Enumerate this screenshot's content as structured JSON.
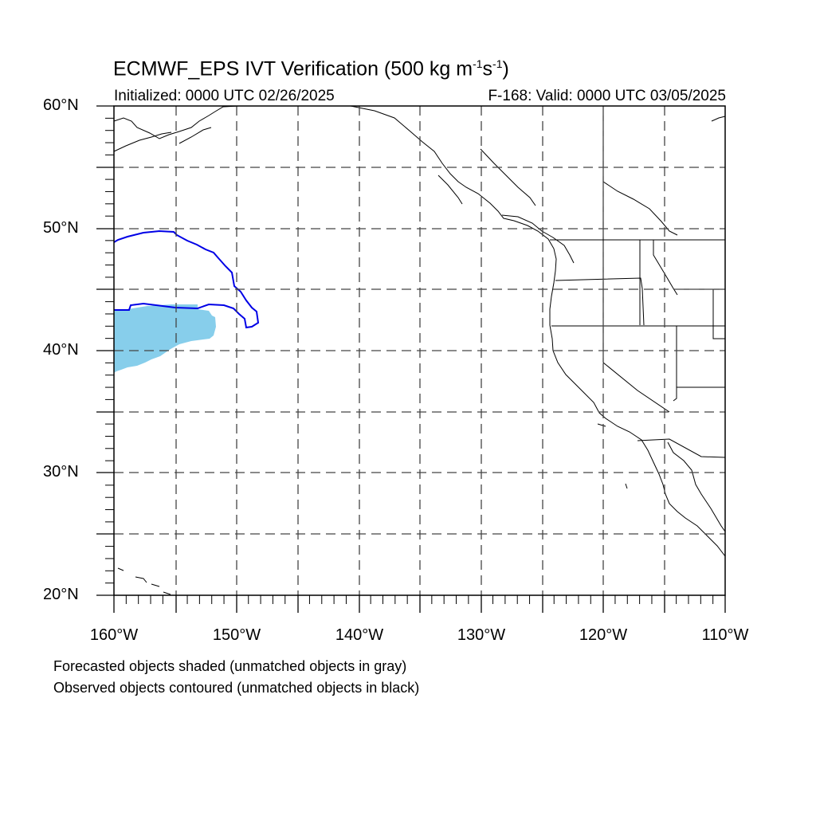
{
  "title": {
    "main": "ECMWF_EPS IVT Verification (500 kg m",
    "exp1": "-1",
    "mid": "s",
    "exp2": "-1",
    "end": ")"
  },
  "subtitle": {
    "initialized": "Initialized: 0000 UTC 02/26/2025",
    "valid": "F-168: Valid: 0000 UTC 03/05/2025"
  },
  "axes": {
    "lat_labels": [
      "60°N",
      "50°N",
      "40°N",
      "30°N",
      "20°N"
    ],
    "lon_labels": [
      "160°W",
      "150°W",
      "140°W",
      "130°W",
      "120°W",
      "110°W"
    ],
    "lon_range": [
      -160,
      -110
    ],
    "lat_range": [
      20,
      60
    ],
    "grid": "dashed every 5 degrees"
  },
  "legend_notes": {
    "forecast": "Forecasted objects shaded (unmatched objects in gray)",
    "observed": "Observed objects contoured (unmatched objects in black)"
  },
  "colors": {
    "forecast_fill": "#87ceeb",
    "observed_contour": "#0000e6",
    "coastline": "#000000",
    "grid": "#444444"
  }
}
